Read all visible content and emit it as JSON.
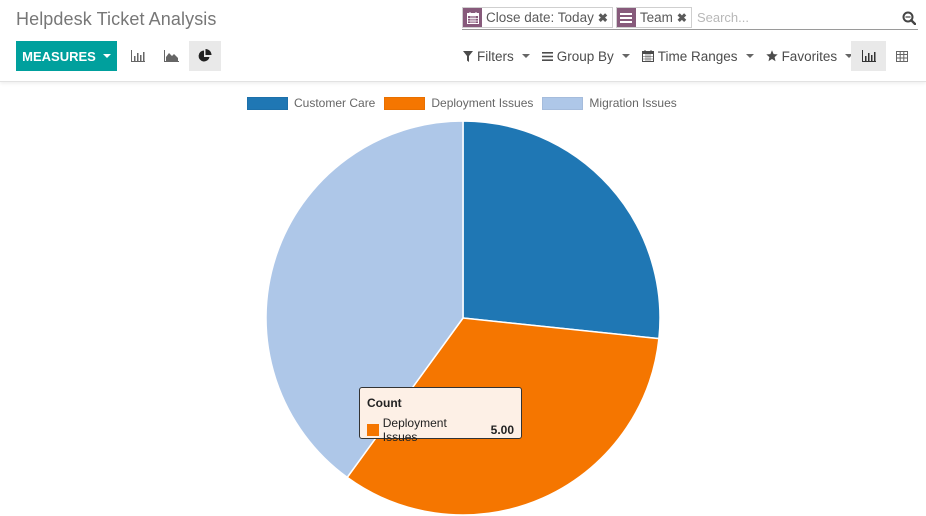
{
  "header": {
    "title": "Helpdesk Ticket Analysis"
  },
  "toolbar": {
    "measures_label": "MEASURES",
    "chart_modes": [
      {
        "name": "bar-chart-icon",
        "active": false
      },
      {
        "name": "line-chart-icon",
        "active": false
      },
      {
        "name": "pie-chart-icon",
        "active": true
      }
    ]
  },
  "search": {
    "facets": [
      {
        "icon": "calendar-icon",
        "label": "Close date: Today"
      },
      {
        "icon": "group-by-icon",
        "label": "Team"
      }
    ],
    "placeholder": "Search...",
    "remove_glyph": "✖"
  },
  "dropdowns": {
    "filters": "Filters",
    "group_by": "Group By",
    "time_ranges": "Time Ranges",
    "favorites": "Favorites"
  },
  "views": [
    {
      "name": "graph-view-icon",
      "active": true
    },
    {
      "name": "pivot-view-icon",
      "active": false
    }
  ],
  "colors": {
    "brand": "#00a09d",
    "facet": "#875a7b",
    "customer_care": "#1f77b4",
    "deployment_issues": "#f57600",
    "migration_issues": "#aec7e8"
  },
  "tooltip": {
    "title": "Count",
    "label": "Deployment Issues",
    "value": "5.00"
  },
  "chart_data": {
    "type": "pie",
    "title": "",
    "measure": "Count",
    "categories": [
      "Customer Care",
      "Deployment Issues",
      "Migration Issues"
    ],
    "values": [
      4,
      5,
      6
    ],
    "colors": [
      "#1f77b4",
      "#f57600",
      "#aec7e8"
    ],
    "legend_position": "top",
    "start_angle": "12 o'clock, clockwise"
  }
}
